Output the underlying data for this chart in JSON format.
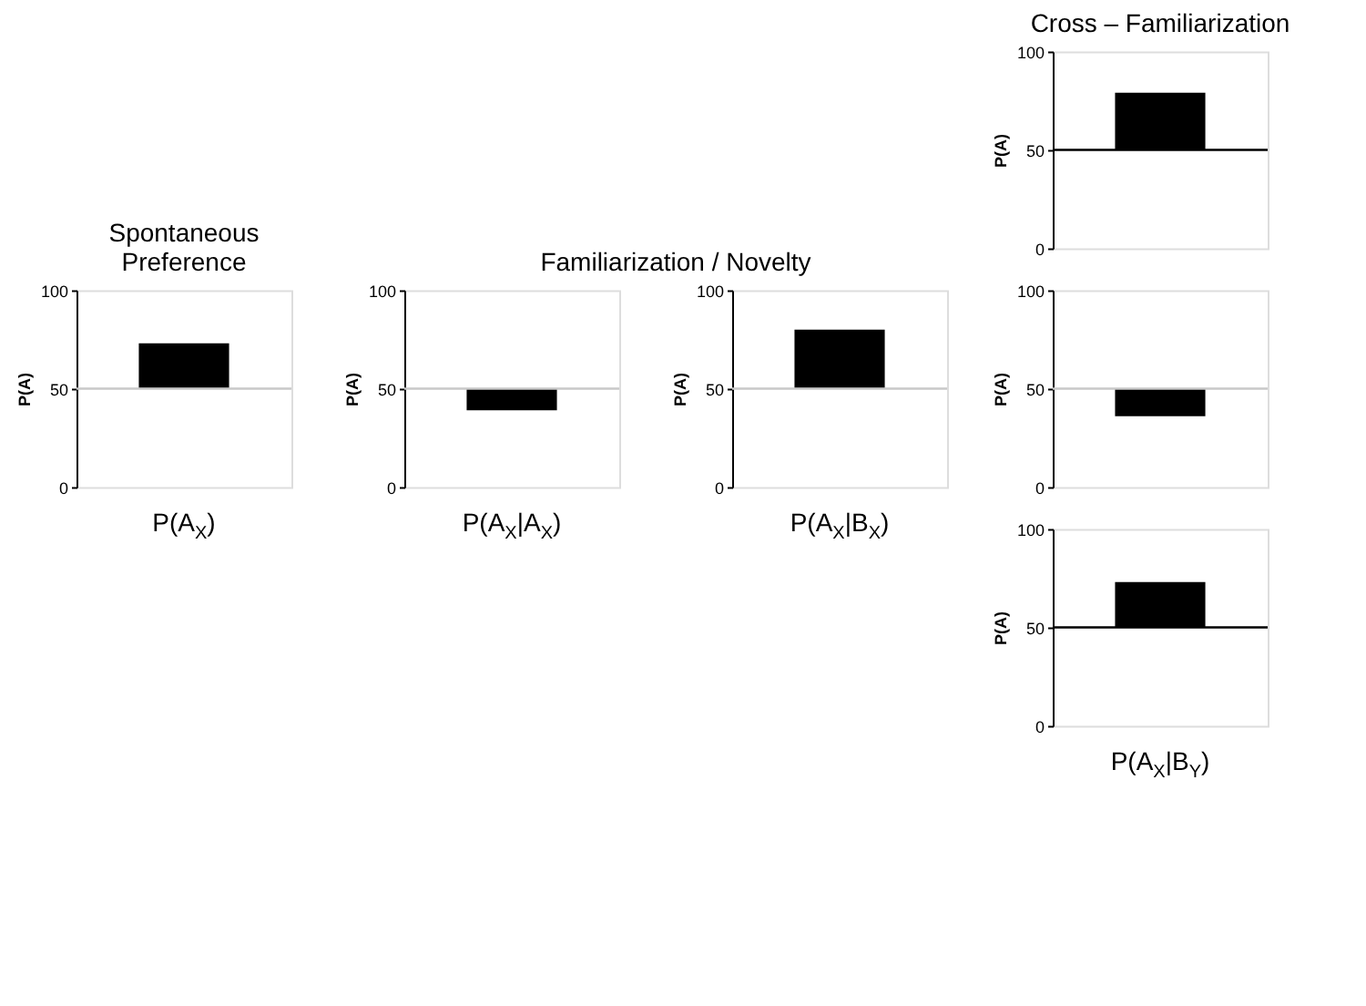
{
  "chart_data": [
    {
      "type": "bar",
      "title": "Spontaneous\nPreference",
      "xlabel": "P(A$_{X}$)",
      "ylabel": "P(A)",
      "categories": [
        null
      ],
      "values": [
        23
      ],
      "base": [
        50
      ],
      "color": "#000000",
      "ylim": [
        0,
        100
      ],
      "yticks": [
        0,
        50,
        100
      ],
      "ref_lines": [
        {
          "axis": "y",
          "value": 50,
          "color": "#c8c8c8"
        }
      ],
      "grid": false
    },
    {
      "type": "bar",
      "title": "Familiarization / Novelty",
      "xlabel": "P(A$_{X}$|A$_{X}$)",
      "ylabel": "P(A)",
      "categories": [
        null
      ],
      "values": [
        -11
      ],
      "base": [
        50
      ],
      "color": "#000000",
      "ylim": [
        0,
        100
      ],
      "yticks": [
        0,
        50,
        100
      ],
      "ref_lines": [
        {
          "axis": "y",
          "value": 50,
          "color": "#c8c8c8"
        }
      ],
      "grid": false
    },
    {
      "type": "bar",
      "xlabel": "P(A$_{X}$|B$_{X}$)",
      "ylabel": "P(A)",
      "categories": [
        null
      ],
      "values": [
        30
      ],
      "base": [
        50
      ],
      "color": "#000000",
      "ylim": [
        0,
        100
      ],
      "yticks": [
        0,
        50,
        100
      ],
      "ref_lines": [
        {
          "axis": "y",
          "value": 50,
          "color": "#c8c8c8"
        }
      ],
      "grid": false
    },
    {
      "type": "bar",
      "title": "Cross – Familiarization",
      "ylabel": "P(A)",
      "categories": [
        null
      ],
      "values": [
        29
      ],
      "base": [
        50
      ],
      "color": "#000000",
      "ylim": [
        0,
        100
      ],
      "yticks": [
        0,
        50,
        100
      ],
      "ref_lines": [
        {
          "axis": "y",
          "value": 50,
          "color": "#000000"
        }
      ],
      "grid": false
    },
    {
      "type": "bar",
      "ylabel": "P(A)",
      "categories": [
        null
      ],
      "values": [
        -14
      ],
      "base": [
        50
      ],
      "color": "#000000",
      "ylim": [
        0,
        100
      ],
      "yticks": [
        0,
        50,
        100
      ],
      "ref_lines": [
        {
          "axis": "y",
          "value": 50,
          "color": "#c8c8c8"
        }
      ],
      "grid": false
    },
    {
      "type": "bar",
      "xlabel": "P(A$_{X}$|B$_{Y}$)",
      "ylabel": "P(A)",
      "categories": [
        null
      ],
      "values": [
        23
      ],
      "base": [
        50
      ],
      "color": "#000000",
      "ylim": [
        0,
        100
      ],
      "yticks": [
        0,
        50,
        100
      ],
      "ref_lines": [
        {
          "axis": "y",
          "value": 50,
          "color": "#000000"
        }
      ],
      "grid": false
    }
  ]
}
